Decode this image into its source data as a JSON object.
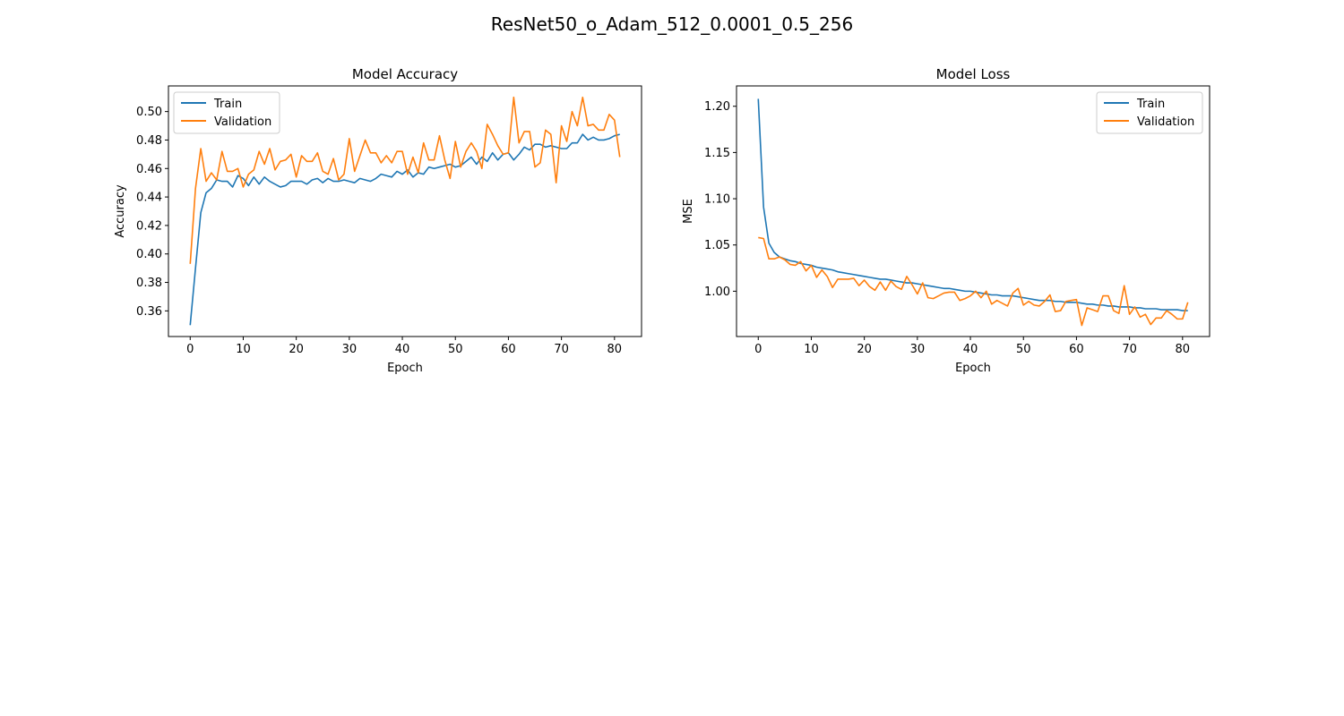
{
  "figure_title": "ResNet50_o_Adam_512_0.0001_0.5_256",
  "colors": {
    "train": "#1f77b4",
    "validation": "#ff7f0e"
  },
  "chart_data": [
    {
      "type": "line",
      "title": "Model Accuracy",
      "xlabel": "Epoch",
      "ylabel": "Accuracy",
      "xlim": [
        -4.1,
        85.1
      ],
      "ylim": [
        0.342,
        0.518
      ],
      "xticks": [
        0,
        10,
        20,
        30,
        40,
        50,
        60,
        70,
        80
      ],
      "yticks": [
        0.36,
        0.38,
        0.4,
        0.42,
        0.44,
        0.46,
        0.48,
        0.5
      ],
      "legend": "upper-left",
      "grid": false,
      "series": [
        {
          "name": "Train",
          "color": "#1f77b4",
          "values": [
            0.35,
            0.39,
            0.429,
            0.443,
            0.446,
            0.452,
            0.451,
            0.451,
            0.447,
            0.455,
            0.453,
            0.448,
            0.454,
            0.449,
            0.454,
            0.451,
            0.449,
            0.447,
            0.448,
            0.451,
            0.451,
            0.451,
            0.449,
            0.452,
            0.453,
            0.45,
            0.453,
            0.451,
            0.451,
            0.452,
            0.451,
            0.45,
            0.453,
            0.452,
            0.451,
            0.453,
            0.456,
            0.455,
            0.454,
            0.458,
            0.456,
            0.459,
            0.454,
            0.457,
            0.456,
            0.461,
            0.46,
            0.461,
            0.462,
            0.463,
            0.461,
            0.462,
            0.465,
            0.468,
            0.463,
            0.468,
            0.465,
            0.471,
            0.466,
            0.47,
            0.471,
            0.466,
            0.47,
            0.475,
            0.473,
            0.477,
            0.477,
            0.475,
            0.476,
            0.475,
            0.474,
            0.474,
            0.478,
            0.478,
            0.484,
            0.48,
            0.482,
            0.48,
            0.48,
            0.481,
            0.483,
            0.484
          ]
        },
        {
          "name": "Validation",
          "color": "#ff7f0e",
          "values": [
            0.393,
            0.446,
            0.474,
            0.451,
            0.457,
            0.452,
            0.472,
            0.458,
            0.458,
            0.46,
            0.447,
            0.456,
            0.459,
            0.472,
            0.463,
            0.474,
            0.459,
            0.465,
            0.466,
            0.47,
            0.454,
            0.469,
            0.465,
            0.465,
            0.471,
            0.458,
            0.456,
            0.467,
            0.452,
            0.456,
            0.481,
            0.458,
            0.469,
            0.48,
            0.471,
            0.471,
            0.464,
            0.469,
            0.464,
            0.472,
            0.472,
            0.456,
            0.468,
            0.457,
            0.478,
            0.466,
            0.466,
            0.483,
            0.466,
            0.453,
            0.479,
            0.461,
            0.472,
            0.478,
            0.472,
            0.46,
            0.491,
            0.484,
            0.476,
            0.47,
            0.471,
            0.51,
            0.478,
            0.486,
            0.486,
            0.461,
            0.464,
            0.487,
            0.484,
            0.45,
            0.49,
            0.479,
            0.5,
            0.49,
            0.51,
            0.49,
            0.491,
            0.487,
            0.487,
            0.498,
            0.494,
            0.468
          ]
        }
      ]
    },
    {
      "type": "line",
      "title": "Model Loss",
      "xlabel": "Epoch",
      "ylabel": "MSE",
      "xlim": [
        -4.1,
        85.1
      ],
      "ylim": [
        0.951,
        1.222
      ],
      "xticks": [
        0,
        10,
        20,
        30,
        40,
        50,
        60,
        70,
        80
      ],
      "yticks": [
        1.0,
        1.05,
        1.1,
        1.15,
        1.2
      ],
      "legend": "upper-right",
      "grid": false,
      "series": [
        {
          "name": "Train",
          "color": "#1f77b4",
          "values": [
            1.208,
            1.091,
            1.052,
            1.042,
            1.037,
            1.035,
            1.033,
            1.032,
            1.03,
            1.029,
            1.028,
            1.026,
            1.025,
            1.024,
            1.023,
            1.021,
            1.02,
            1.019,
            1.018,
            1.017,
            1.016,
            1.015,
            1.014,
            1.013,
            1.013,
            1.012,
            1.011,
            1.01,
            1.009,
            1.009,
            1.008,
            1.007,
            1.006,
            1.005,
            1.004,
            1.003,
            1.003,
            1.002,
            1.001,
            1.0,
            1.0,
            0.999,
            0.998,
            0.997,
            0.996,
            0.996,
            0.995,
            0.995,
            0.995,
            0.994,
            0.993,
            0.992,
            0.991,
            0.99,
            0.99,
            0.99,
            0.989,
            0.989,
            0.988,
            0.988,
            0.988,
            0.987,
            0.986,
            0.986,
            0.985,
            0.985,
            0.984,
            0.984,
            0.983,
            0.983,
            0.983,
            0.982,
            0.982,
            0.981,
            0.981,
            0.981,
            0.98,
            0.98,
            0.98,
            0.98,
            0.979,
            0.979
          ]
        },
        {
          "name": "Validation",
          "color": "#ff7f0e",
          "values": [
            1.058,
            1.057,
            1.035,
            1.035,
            1.037,
            1.034,
            1.029,
            1.028,
            1.032,
            1.022,
            1.028,
            1.015,
            1.023,
            1.016,
            1.004,
            1.013,
            1.013,
            1.013,
            1.014,
            1.006,
            1.012,
            1.005,
            1.001,
            1.01,
            1.001,
            1.011,
            1.005,
            1.002,
            1.016,
            1.007,
            0.997,
            1.009,
            0.993,
            0.992,
            0.995,
            0.998,
            0.999,
            0.999,
            0.99,
            0.992,
            0.995,
            1.0,
            0.993,
            1.0,
            0.986,
            0.99,
            0.987,
            0.984,
            0.998,
            1.003,
            0.985,
            0.989,
            0.985,
            0.984,
            0.989,
            0.996,
            0.978,
            0.979,
            0.989,
            0.99,
            0.991,
            0.963,
            0.982,
            0.98,
            0.978,
            0.995,
            0.995,
            0.979,
            0.976,
            1.006,
            0.975,
            0.983,
            0.972,
            0.975,
            0.964,
            0.971,
            0.971,
            0.979,
            0.975,
            0.97,
            0.97,
            0.988
          ]
        }
      ]
    }
  ]
}
